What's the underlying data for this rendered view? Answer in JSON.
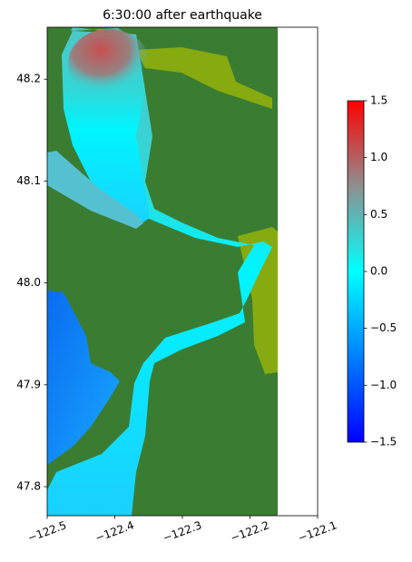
{
  "chart_data": {
    "type": "map",
    "title": "6:30:00 after earthquake",
    "xlim": [
      -122.5,
      -122.1
    ],
    "xticks": [
      {
        "value": -122.5,
        "label": "−122.5"
      },
      {
        "value": -122.4,
        "label": "−122.4"
      },
      {
        "value": -122.3,
        "label": "−122.3"
      },
      {
        "value": -122.2,
        "label": "−122.2"
      },
      {
        "value": -122.1,
        "label": "−122.1"
      }
    ],
    "ylim": [
      47.7715,
      48.251
    ],
    "yticks": [
      47.8,
      47.9,
      {
        "value": 48.0,
        "label": "48.0"
      },
      48.1,
      48.2
    ],
    "colorbar": {
      "clim": [
        -1.5,
        1.5
      ],
      "colors": [
        "#0000ff",
        "#0080ff",
        "#00ffff",
        "#8f8f8f",
        "#ff0000"
      ],
      "ticks": [
        {
          "value": -1.5,
          "label": "−1.5"
        },
        {
          "value": -1.0,
          "label": "−1.0"
        },
        {
          "value": -0.5,
          "label": "−0.5"
        },
        {
          "value": 0.0,
          "label": "0.0"
        },
        0.5,
        {
          "value": 1.0,
          "label": "1.0"
        },
        1.5
      ]
    }
  }
}
